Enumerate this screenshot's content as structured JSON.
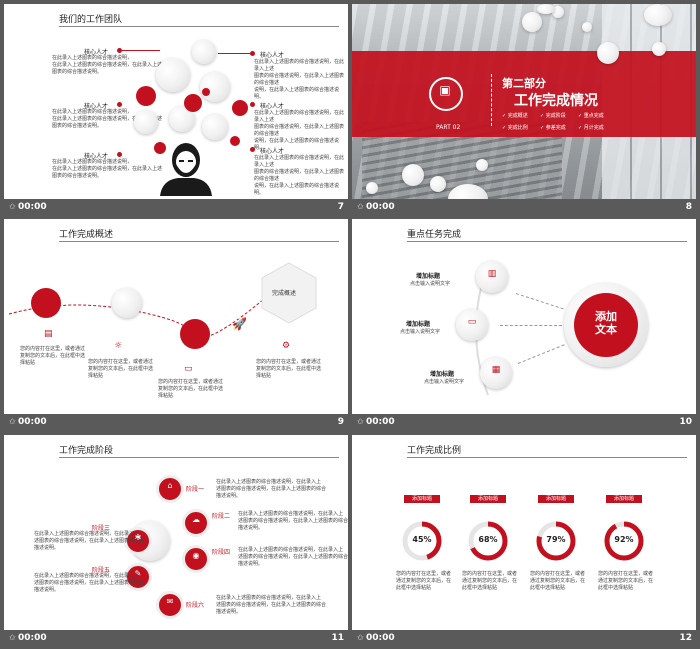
{
  "slides": [
    {
      "num": "7",
      "title": "我们的工作团队",
      "talent": "核心人才",
      "desc": [
        "在此录入上述图表的综合描述说明，",
        "在此录入上述图表的综合描述说明，在此录入上述",
        "图表的综合描述说明。"
      ],
      "desc2": [
        "在此录入上述图表的综合描述说明，在此录入上述",
        "图表的综合描述说明，在此录入上述图表的综合描述",
        "说明，在此录入上述图表的综合描述说明。"
      ]
    },
    {
      "num": "8",
      "part_label": "第二部分",
      "part_title": "工作完成情况",
      "part_no": "PART 02",
      "items": [
        "完成概述",
        "完成阶段",
        "重点完成",
        "完成比例",
        "参差完成",
        "月计完成"
      ]
    },
    {
      "num": "9",
      "title": "工作完成概述",
      "hex": "完成概述",
      "desc": [
        "您的内容打在这里，或者通过",
        "复制您的文本后，在此框中选",
        "择粘贴"
      ]
    },
    {
      "num": "10",
      "title": "重点任务完成",
      "center": [
        "添加",
        "文本"
      ],
      "tasks": [
        {
          "t": "增加标题",
          "d": "点击输入说明文字"
        },
        {
          "t": "增加标题",
          "d": "点击输入说明文字"
        },
        {
          "t": "增加标题",
          "d": "点击输入说明文字"
        }
      ]
    },
    {
      "num": "11",
      "title": "工作完成阶段",
      "stages": [
        "阶段一",
        "阶段二",
        "阶段三",
        "阶段四",
        "阶段五",
        "阶段六"
      ],
      "desc": [
        "在此录入上述图表的综合描述说明，在此录入上",
        "述图表的综合描述说明，在此录入上述图表的综合",
        "描述说明。"
      ]
    },
    {
      "num": "12",
      "title": "工作完成比例",
      "tag": "添加标题",
      "percents": [
        "45%",
        "68%",
        "79%",
        "92%"
      ],
      "desc": [
        "您的内容打在这里，或者",
        "通过复制您的文本后，在",
        "此框中选择粘贴"
      ]
    }
  ],
  "time": "00:00",
  "icon_names": [
    "presenter-icon",
    "star-icon"
  ],
  "colors": {
    "accent": "#c3101e",
    "frame": "#5a5a5a"
  }
}
